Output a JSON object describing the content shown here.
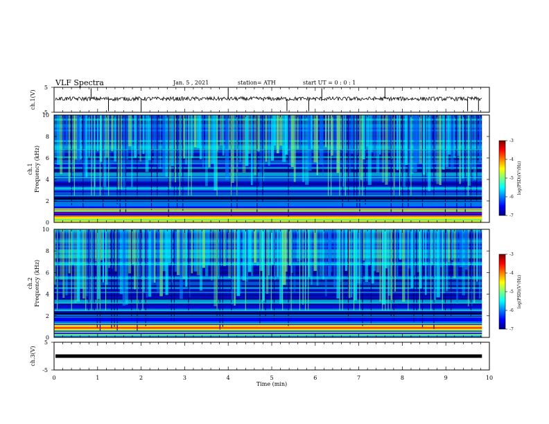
{
  "header": {
    "title": "VLF Spectra",
    "date": "Jan. 5 , 2021",
    "station": "station= ATH",
    "start": "start UT = 0 : 0 : 1"
  },
  "colors": {
    "colormap": [
      "#00007f",
      "#0000ff",
      "#007fff",
      "#00ffff",
      "#7fff7f",
      "#ffff00",
      "#ff7f00",
      "#ff0000",
      "#7f0000"
    ],
    "trace": "#000000"
  },
  "chart_data": [
    {
      "type": "line",
      "name": "ch1-voltage",
      "ylabel": "ch.1(V)",
      "ylim": [
        -5,
        5
      ],
      "yticks": [
        "5",
        "-5"
      ],
      "xlim": [
        0,
        10
      ],
      "baseline": 0.4,
      "spikes_min": [
        0.85,
        1.25,
        2.0,
        4.0,
        5.35,
        5.85,
        6.15,
        7.6,
        9.5,
        9.75
      ]
    },
    {
      "type": "heatmap",
      "name": "ch1-spectrogram",
      "ylabel": "ch.1 Frequency (kHz)",
      "ylim": [
        0,
        10
      ],
      "yticks": [
        "0",
        "2",
        "4",
        "6",
        "8",
        "10"
      ],
      "xlim": [
        0,
        9.83
      ],
      "colorbar": {
        "label": "log(PSD)(V²/Hz)",
        "range": [
          -7,
          -3
        ],
        "ticks": [
          "-3",
          "-4",
          "-5",
          "-6",
          "-7"
        ]
      }
    },
    {
      "type": "heatmap",
      "name": "ch2-spectrogram",
      "ylabel": "ch.2 Frequency (kHz)",
      "ylim": [
        0,
        10
      ],
      "yticks": [
        "0",
        "2",
        "4",
        "6",
        "8",
        "10"
      ],
      "xlim": [
        0,
        9.83
      ],
      "colorbar": {
        "label": "log(PSD)(V²/Hz)",
        "range": [
          -7,
          -3
        ],
        "ticks": [
          "-3",
          "-4",
          "-5",
          "-6",
          "-7"
        ]
      }
    },
    {
      "type": "line",
      "name": "ch3-voltage",
      "ylabel": "ch.3(V)",
      "ylim": [
        -5,
        5
      ],
      "yticks": [
        "5",
        "-5"
      ],
      "xlim": [
        0,
        10
      ],
      "baseline": 0.0
    }
  ],
  "xaxis": {
    "label": "Time (min)",
    "ticks": [
      "0",
      "1",
      "2",
      "3",
      "4",
      "5",
      "6",
      "7",
      "8",
      "9",
      "10"
    ],
    "range": [
      0,
      10
    ]
  }
}
